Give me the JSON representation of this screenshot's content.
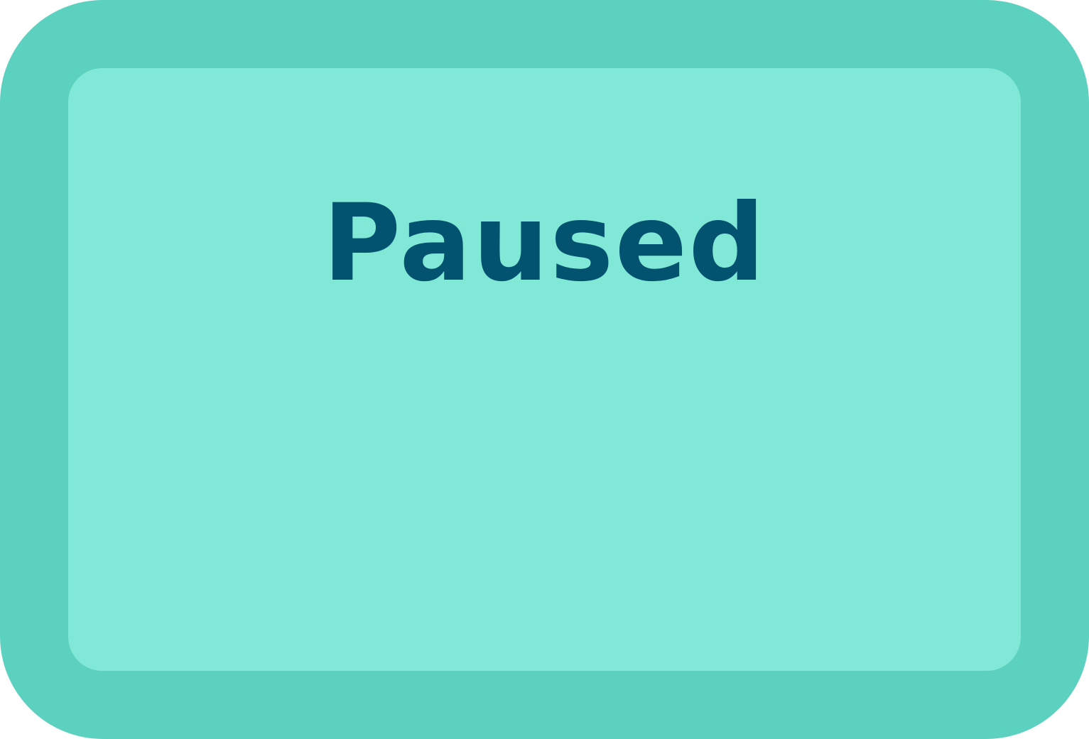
{
  "pause_panel": {
    "title": "Paused"
  },
  "colors": {
    "frame": "#5dd1bf",
    "inner": "#81e7d6",
    "title_text": "#03526f"
  }
}
